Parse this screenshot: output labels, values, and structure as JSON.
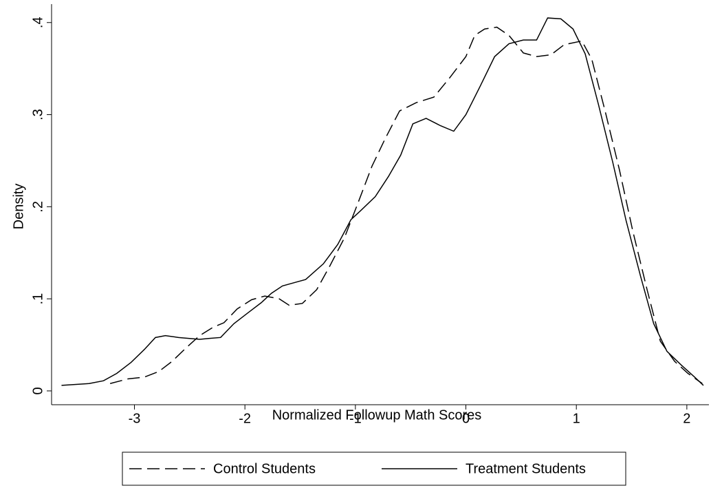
{
  "chart_data": {
    "type": "line",
    "xlabel": "Normalized Followup Math Scores",
    "ylabel": "Density",
    "xlim": [
      -3.75,
      2.2
    ],
    "ylim": [
      -0.015,
      0.42
    ],
    "xticks": [
      -3,
      -2,
      -1,
      0,
      1,
      2
    ],
    "yticks": [
      0,
      {
        "value": 0.1,
        "label": ".1"
      },
      {
        "value": 0.2,
        "label": ".2"
      },
      {
        "value": 0.3,
        "label": ".3"
      },
      {
        "value": 0.4,
        "label": ".4"
      }
    ],
    "grid": false,
    "legend": "bottom",
    "series": [
      {
        "name": "Control Students",
        "color": "#000000",
        "style": "dashed",
        "x": [
          -3.22,
          -3.06,
          -2.91,
          -2.78,
          -2.66,
          -2.53,
          -2.41,
          -2.29,
          -2.19,
          -2.07,
          -1.94,
          -1.82,
          -1.69,
          -1.6,
          -1.48,
          -1.35,
          -1.23,
          -1.1,
          -0.98,
          -0.85,
          -0.73,
          -0.6,
          -0.45,
          -0.29,
          -0.14,
          0,
          0.08,
          0.17,
          0.28,
          0.39,
          0.52,
          0.64,
          0.77,
          0.89,
          1.05,
          1.14,
          1.26,
          1.39,
          1.51,
          1.64,
          1.76,
          1.89,
          2.01,
          2.14
        ],
        "values": [
          0.008,
          0.013,
          0.015,
          0.021,
          0.032,
          0.047,
          0.06,
          0.069,
          0.074,
          0.089,
          0.099,
          0.103,
          0.1,
          0.093,
          0.095,
          0.11,
          0.136,
          0.166,
          0.203,
          0.244,
          0.274,
          0.304,
          0.313,
          0.319,
          0.341,
          0.363,
          0.386,
          0.393,
          0.395,
          0.386,
          0.367,
          0.363,
          0.365,
          0.376,
          0.38,
          0.36,
          0.304,
          0.24,
          0.174,
          0.11,
          0.054,
          0.032,
          0.019,
          0.008
        ]
      },
      {
        "name": "Treatment Students",
        "color": "#000000",
        "style": "solid",
        "x": [
          -3.66,
          -3.41,
          -3.28,
          -3.16,
          -3.03,
          -2.91,
          -2.81,
          -2.72,
          -2.6,
          -2.41,
          -2.32,
          -2.22,
          -2.1,
          -1.97,
          -1.85,
          -1.76,
          -1.66,
          -1.54,
          -1.45,
          -1.29,
          -1.16,
          -1.04,
          -0.95,
          -0.82,
          -0.7,
          -0.59,
          -0.48,
          -0.36,
          -0.23,
          -0.11,
          0,
          0.13,
          0.26,
          0.39,
          0.52,
          0.64,
          0.74,
          0.86,
          0.97,
          1.08,
          1.2,
          1.33,
          1.45,
          1.58,
          1.7,
          1.82,
          1.95,
          2.07,
          2.15
        ],
        "values": [
          0.006,
          0.008,
          0.011,
          0.019,
          0.031,
          0.045,
          0.058,
          0.06,
          0.058,
          0.056,
          0.057,
          0.058,
          0.073,
          0.085,
          0.096,
          0.106,
          0.114,
          0.118,
          0.121,
          0.138,
          0.159,
          0.186,
          0.196,
          0.211,
          0.233,
          0.256,
          0.29,
          0.296,
          0.288,
          0.282,
          0.3,
          0.331,
          0.363,
          0.377,
          0.381,
          0.381,
          0.405,
          0.404,
          0.393,
          0.366,
          0.311,
          0.248,
          0.185,
          0.125,
          0.073,
          0.043,
          0.028,
          0.015,
          0.006
        ]
      }
    ]
  }
}
